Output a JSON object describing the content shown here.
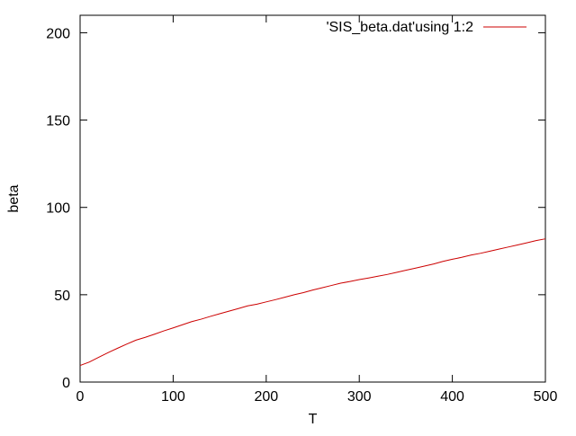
{
  "chart_data": {
    "type": "line",
    "title": "",
    "xlabel": "T",
    "ylabel": "beta",
    "xlim": [
      0,
      500
    ],
    "ylim": [
      0,
      210
    ],
    "xticks": [
      0,
      100,
      200,
      300,
      400,
      500
    ],
    "yticks": [
      0,
      50,
      100,
      150,
      200
    ],
    "grid": false,
    "legend_position": "top-right",
    "series": [
      {
        "name": "'SIS_beta.dat'using 1:2",
        "color": "#cc0000",
        "x": [
          0,
          10,
          20,
          30,
          40,
          50,
          60,
          70,
          80,
          90,
          100,
          110,
          120,
          130,
          140,
          150,
          160,
          170,
          180,
          190,
          200,
          210,
          220,
          230,
          240,
          250,
          260,
          270,
          280,
          290,
          300,
          310,
          320,
          330,
          340,
          350,
          360,
          370,
          380,
          390,
          400,
          410,
          420,
          430,
          440,
          450,
          460,
          470,
          480,
          490,
          500
        ],
        "y": [
          9.5,
          11.5,
          14.2,
          16.8,
          19.3,
          21.7,
          24.0,
          25.6,
          27.4,
          29.3,
          31.0,
          32.8,
          34.6,
          36.0,
          37.6,
          39.1,
          40.6,
          42.1,
          43.6,
          44.6,
          45.9,
          47.2,
          48.6,
          50.0,
          51.2,
          52.7,
          54.0,
          55.3,
          56.6,
          57.6,
          58.7,
          59.6,
          60.6,
          61.6,
          62.8,
          64.0,
          65.2,
          66.4,
          67.6,
          69.1,
          70.3,
          71.4,
          72.7,
          73.7,
          74.9,
          76.1,
          77.3,
          78.5,
          79.7,
          81.0,
          82.0
        ]
      }
    ]
  }
}
